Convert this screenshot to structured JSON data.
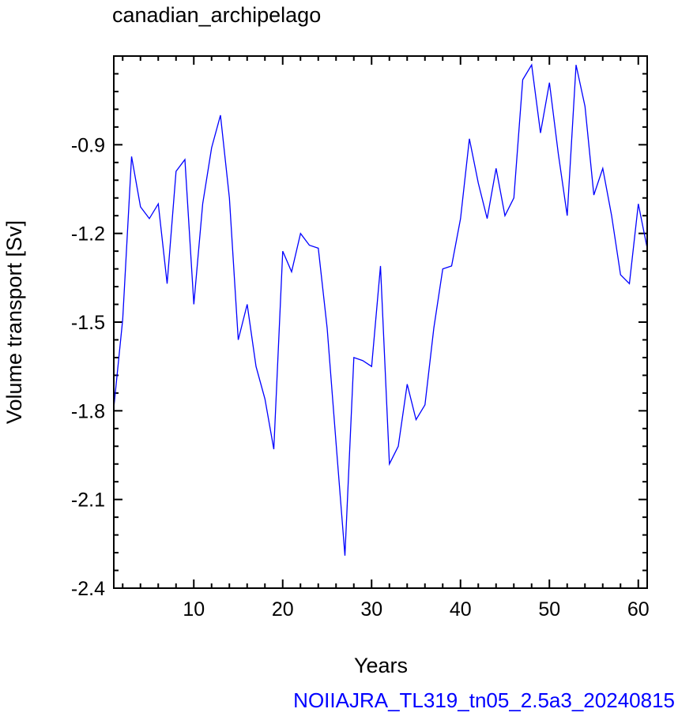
{
  "chart_data": {
    "type": "line",
    "title": "canadian_archipelago",
    "xlabel": "Years",
    "ylabel": "Volume transport [Sv]",
    "footer": "NOIIAJRA_TL319_tn05_2.5a3_20240815",
    "xlim": [
      1,
      61
    ],
    "ylim": [
      -2.4,
      -0.6
    ],
    "xticks": [
      10,
      20,
      30,
      40,
      50,
      60
    ],
    "xtick_labels": [
      "10",
      "20",
      "30",
      "40",
      "50",
      "60"
    ],
    "yticks": [
      -2.4,
      -2.1,
      -1.8,
      -1.5,
      -1.2,
      -0.9
    ],
    "ytick_labels": [
      "-2.4",
      "-2.1",
      "-1.8",
      "-1.5",
      "-1.2",
      "-0.9"
    ],
    "grid": false,
    "series": [
      {
        "color": "#0000ff",
        "x": [
          1,
          2,
          3,
          4,
          5,
          6,
          7,
          8,
          9,
          10,
          11,
          12,
          13,
          14,
          15,
          16,
          17,
          18,
          19,
          20,
          21,
          22,
          23,
          24,
          25,
          26,
          27,
          28,
          29,
          30,
          31,
          32,
          33,
          34,
          35,
          36,
          37,
          38,
          39,
          40,
          41,
          42,
          43,
          44,
          45,
          46,
          47,
          48,
          49,
          50,
          51,
          52,
          53,
          54,
          55,
          56,
          57,
          58,
          59,
          60,
          61
        ],
        "values": [
          -1.79,
          -1.49,
          -0.94,
          -1.11,
          -1.15,
          -1.1,
          -1.37,
          -0.99,
          -0.95,
          -1.44,
          -1.1,
          -0.91,
          -0.8,
          -1.08,
          -1.56,
          -1.44,
          -1.65,
          -1.76,
          -1.93,
          -1.26,
          -1.33,
          -1.2,
          -1.24,
          -1.25,
          -1.52,
          -1.91,
          -2.29,
          -1.62,
          -1.63,
          -1.65,
          -1.31,
          -1.98,
          -1.92,
          -1.71,
          -1.83,
          -1.78,
          -1.52,
          -1.32,
          -1.31,
          -1.15,
          -0.88,
          -1.03,
          -1.15,
          -0.98,
          -1.14,
          -1.08,
          -0.68,
          -0.63,
          -0.86,
          -0.69,
          -0.93,
          -1.14,
          -0.63,
          -0.77,
          -1.07,
          -0.98,
          -1.14,
          -1.34,
          -1.37,
          -1.1,
          -1.25
        ]
      }
    ]
  }
}
